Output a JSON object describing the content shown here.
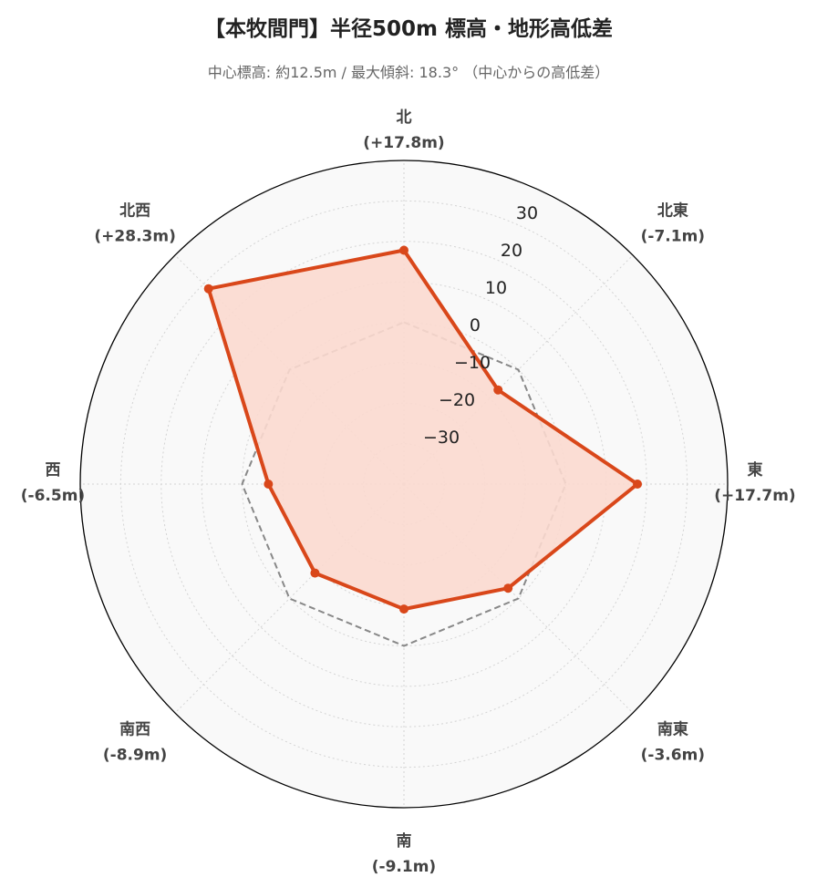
{
  "chart_data": {
    "type": "radar",
    "title": "【本牧間門】半径500m 標高・地形高低差",
    "subtitle": "中心標高: 約12.5m / 最大傾斜: 18.3° （中心からの高低差）",
    "directions": [
      {
        "name": "北",
        "label": "(+17.8m)",
        "value": 17.8
      },
      {
        "name": "北東",
        "label": "(-7.1m)",
        "value": -7.1
      },
      {
        "name": "東",
        "label": "(+17.7m)",
        "value": 17.7
      },
      {
        "name": "南東",
        "label": "(-3.6m)",
        "value": -3.6
      },
      {
        "name": "南",
        "label": "(-9.1m)",
        "value": -9.1
      },
      {
        "name": "南西",
        "label": "(-8.9m)",
        "value": -8.9
      },
      {
        "name": "西",
        "label": "(-6.5m)",
        "value": -6.5
      },
      {
        "name": "北西",
        "label": "(+28.3m)",
        "value": 28.3
      }
    ],
    "radial_ticks": [
      "−30",
      "−20",
      "−10",
      "0",
      "10",
      "20",
      "30"
    ],
    "radial_tick_values": [
      -30,
      -20,
      -10,
      0,
      10,
      20,
      30
    ],
    "rlim": [
      -40,
      40
    ],
    "reference_value": 0,
    "grid": true,
    "colors": {
      "series_line": "#d9471a",
      "series_fill": "#fbd9cf",
      "reference_line": "#888888",
      "background": "#f9f9f9",
      "grid": "#d4d4d4"
    }
  }
}
